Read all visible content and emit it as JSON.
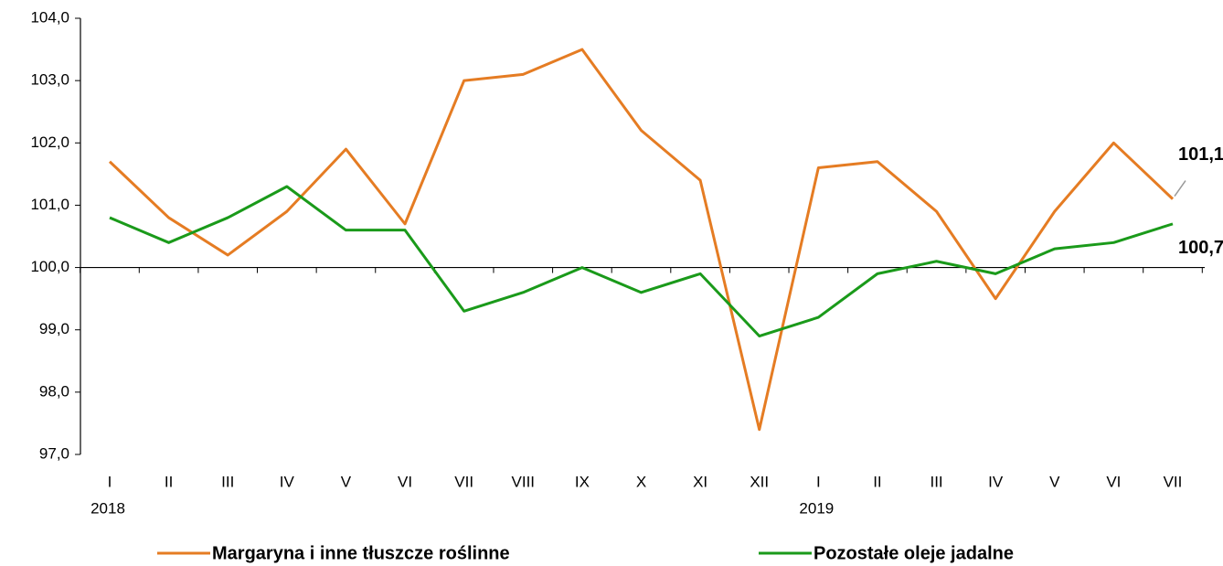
{
  "chart_data": {
    "type": "line",
    "categories": [
      "I",
      "II",
      "III",
      "IV",
      "V",
      "VI",
      "VII",
      "VIII",
      "IX",
      "X",
      "XI",
      "XII",
      "I",
      "II",
      "III",
      "IV",
      "V",
      "VI",
      "VII"
    ],
    "years": [
      "2018",
      "2019"
    ],
    "series": [
      {
        "name": "Margaryna i inne tłuszcze roślinne",
        "color": "#e57c23",
        "values": [
          101.7,
          100.8,
          100.2,
          100.9,
          101.9,
          100.7,
          103.0,
          103.1,
          103.5,
          102.2,
          101.4,
          97.4,
          101.6,
          101.7,
          100.9,
          99.5,
          100.9,
          102.0,
          101.1
        ],
        "value_labels": [
          null,
          null,
          null,
          null,
          null,
          null,
          null,
          null,
          null,
          null,
          null,
          null,
          null,
          null,
          null,
          null,
          null,
          null,
          "101,1"
        ]
      },
      {
        "name": "Pozostałe oleje jadalne",
        "color": "#1a9a1a",
        "values": [
          100.8,
          100.4,
          100.8,
          101.3,
          100.6,
          100.6,
          99.3,
          99.6,
          100.0,
          99.6,
          99.9,
          98.9,
          99.2,
          99.9,
          100.1,
          99.9,
          100.3,
          100.4,
          100.7
        ],
        "value_labels": [
          null,
          null,
          null,
          null,
          null,
          null,
          null,
          null,
          null,
          null,
          null,
          null,
          null,
          null,
          null,
          null,
          null,
          null,
          "100,7"
        ]
      }
    ],
    "ylim": [
      97,
      104
    ],
    "yticks": [
      {
        "value": 97,
        "label": "97,0"
      },
      {
        "value": 98,
        "label": "98,0"
      },
      {
        "value": 99,
        "label": "99,0"
      },
      {
        "value": 100,
        "label": "100,0"
      },
      {
        "value": 101,
        "label": "101,0"
      },
      {
        "value": 102,
        "label": "102,0"
      },
      {
        "value": 103,
        "label": "103,0"
      },
      {
        "value": 104,
        "label": "104,0"
      }
    ],
    "x_axis_at": 100,
    "legend": "bottom"
  }
}
